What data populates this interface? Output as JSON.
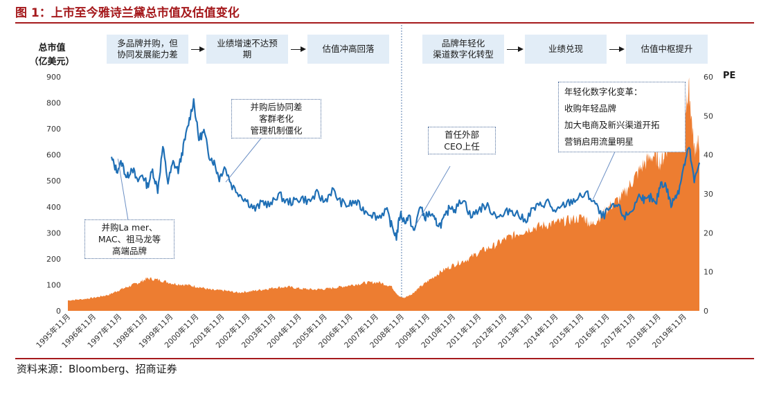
{
  "figure_title": "图 1：上市至今雅诗兰黛总市值及估值变化",
  "source": "资料来源：Bloomberg、招商证券",
  "stages": [
    {
      "label": "多品牌并购，但\n协同发展能力差"
    },
    {
      "label": "业绩增速不达预\n期"
    },
    {
      "label": "估值冲高回落"
    },
    {
      "label": "品牌年轻化\n渠道数字化转型"
    },
    {
      "label": "业绩兑现"
    },
    {
      "label": "估值中枢提升"
    }
  ],
  "annotations": [
    {
      "text": "并购La mer、\nMAC、祖马龙等\n高端品牌"
    },
    {
      "text": "并购后协同差\n客群老化\n管理机制僵化"
    },
    {
      "text": "首任外部\nCEO上任"
    },
    {
      "text": "年轻化数字化变革：\n收购年轻品牌\n加大电商及新兴渠道开拓\n营销启用流量明星"
    }
  ],
  "colors": {
    "title": "#a5191c",
    "market_cap_area": "#ed7d31",
    "pe_line": "#1f6fb5",
    "stage_box": "#e2edf7"
  },
  "chart_data": {
    "type": "area",
    "ylabel": "总市值\n（亿美元）",
    "y2label": "PE",
    "ylim": [
      0,
      900
    ],
    "y_ticks": [
      "0",
      "100",
      "200",
      "300",
      "400",
      "500",
      "600",
      "700",
      "800",
      "900"
    ],
    "y2lim": [
      0,
      60
    ],
    "y2_ticks": [
      "0",
      "10",
      "20",
      "30",
      "40",
      "50",
      "60"
    ],
    "x_ticks": [
      "1995年11月",
      "1996年11月",
      "1997年11月",
      "1998年11月",
      "1999年11月",
      "2000年11月",
      "2001年11月",
      "2002年11月",
      "2003年11月",
      "2004年11月",
      "2005年11月",
      "2006年11月",
      "2007年11月",
      "2008年11月",
      "2009年11月",
      "2010年11月",
      "2011年11月",
      "2012年11月",
      "2013年11月",
      "2014年11月",
      "2015年11月",
      "2016年11月",
      "2017年11月",
      "2018年11月",
      "2019年11月"
    ],
    "x_range": [
      1995.9,
      2020.5
    ],
    "grid": false,
    "divider_x": 2008.9,
    "series": [
      {
        "name": "总市值",
        "axis": "left",
        "style": "area",
        "x": [
          1995.9,
          1996.5,
          1997.0,
          1997.5,
          1997.9,
          1998.3,
          1998.7,
          1999.0,
          1999.5,
          2000.0,
          2000.5,
          2001.0,
          2001.5,
          2002.0,
          2002.5,
          2003.0,
          2003.5,
          2004.0,
          2004.5,
          2005.0,
          2005.5,
          2006.0,
          2006.5,
          2007.0,
          2007.5,
          2008.0,
          2008.5,
          2008.8,
          2009.0,
          2009.3,
          2009.6,
          2010.0,
          2010.5,
          2011.0,
          2011.5,
          2012.0,
          2012.5,
          2013.0,
          2013.5,
          2014.0,
          2014.5,
          2015.0,
          2015.5,
          2016.0,
          2016.3,
          2016.7,
          2017.0,
          2017.5,
          2017.9,
          2018.3,
          2018.7,
          2019.0,
          2019.3,
          2019.6,
          2019.9,
          2020.1,
          2020.3,
          2020.5
        ],
        "values": [
          40,
          45,
          52,
          62,
          80,
          95,
          110,
          125,
          118,
          105,
          100,
          92,
          80,
          78,
          70,
          75,
          82,
          90,
          92,
          85,
          82,
          85,
          92,
          100,
          108,
          110,
          95,
          55,
          50,
          65,
          90,
          120,
          155,
          180,
          200,
          230,
          250,
          280,
          300,
          320,
          330,
          340,
          350,
          360,
          330,
          370,
          400,
          440,
          500,
          560,
          600,
          570,
          640,
          700,
          760,
          850,
          620,
          650
        ]
      },
      {
        "name": "PE",
        "axis": "right",
        "style": "line",
        "x": [
          1997.6,
          1997.8,
          1998.0,
          1998.2,
          1998.4,
          1998.6,
          1998.8,
          1999.0,
          1999.2,
          1999.4,
          1999.6,
          1999.8,
          2000.0,
          2000.2,
          2000.4,
          2000.6,
          2000.8,
          2001.0,
          2001.2,
          2001.4,
          2001.6,
          2001.8,
          2002.0,
          2002.3,
          2002.6,
          2002.9,
          2003.2,
          2003.5,
          2003.8,
          2004.1,
          2004.4,
          2004.7,
          2005.0,
          2005.3,
          2005.6,
          2005.9,
          2006.2,
          2006.5,
          2006.8,
          2007.1,
          2007.4,
          2007.7,
          2008.0,
          2008.3,
          2008.5,
          2008.7,
          2008.85,
          2009.0,
          2009.2,
          2009.4,
          2009.6,
          2009.8,
          2010.0,
          2010.2,
          2010.4,
          2010.6,
          2010.8,
          2011.0,
          2011.3,
          2011.6,
          2011.9,
          2012.2,
          2012.5,
          2012.8,
          2013.1,
          2013.4,
          2013.7,
          2014.0,
          2014.3,
          2014.6,
          2014.9,
          2015.2,
          2015.5,
          2015.8,
          2016.1,
          2016.4,
          2016.7,
          2017.0,
          2017.3,
          2017.6,
          2017.9,
          2018.2,
          2018.4,
          2018.6,
          2018.8,
          2019.0,
          2019.2,
          2019.4,
          2019.6,
          2019.7,
          2019.9,
          2020.1,
          2020.3,
          2020.5
        ],
        "values": [
          39,
          36,
          38,
          34,
          37,
          33,
          35,
          32,
          36,
          31,
          42,
          33,
          38,
          36,
          42,
          48,
          54,
          44,
          46,
          40,
          38,
          34,
          37,
          32,
          30,
          28,
          26,
          28,
          27,
          30,
          28,
          28,
          29,
          28,
          30,
          28,
          31,
          28,
          27,
          28,
          26,
          25,
          24,
          26,
          22,
          19,
          25,
          23,
          24,
          20,
          27,
          24,
          25,
          23,
          22,
          24,
          27,
          26,
          29,
          24,
          26,
          27,
          25,
          24,
          26,
          25,
          23,
          26,
          27,
          28,
          25,
          27,
          28,
          29,
          30,
          28,
          24,
          26,
          27,
          24,
          26,
          30,
          28,
          29,
          27,
          33,
          32,
          27,
          30,
          31,
          37,
          42,
          33,
          38
        ]
      }
    ]
  }
}
